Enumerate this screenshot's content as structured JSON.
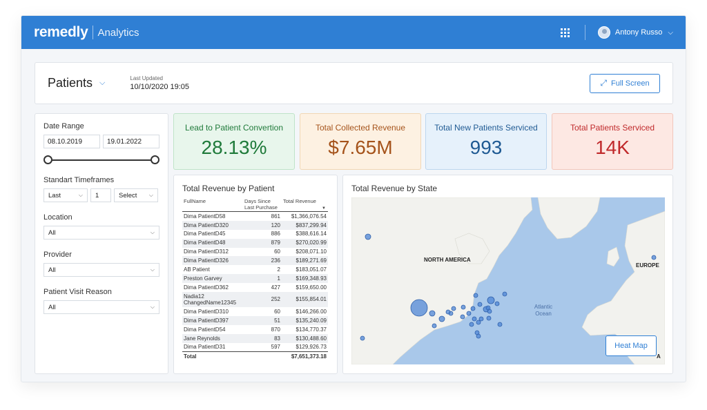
{
  "topbar": {
    "brand": "remedly",
    "product": "Analytics",
    "user_name": "Antony Russo",
    "icons": {
      "apps": "apps-grid-icon",
      "avatar": "user-avatar",
      "chevron": "chevron-down-icon"
    }
  },
  "header": {
    "title": "Patients",
    "last_updated_label": "Last Updated",
    "last_updated_value": "10/10/2020 19:05",
    "full_screen_label": "Full Screen"
  },
  "filters": {
    "date_range_label": "Date Range",
    "date_from": "08.10.2019",
    "date_to": "19.01.2022",
    "timeframes_label": "Standart Timeframes",
    "timeframe_unit": "Last",
    "timeframe_count": "1",
    "timeframe_period": "Select",
    "location_label": "Location",
    "location_value": "All",
    "provider_label": "Provider",
    "provider_value": "All",
    "visit_reason_label": "Patient Visit Reason",
    "visit_reason_value": "All"
  },
  "kpis": [
    {
      "label": "Lead to Patient Convertion",
      "value": "28.13%",
      "bg": "#e8f6ec",
      "border": "#bfe3c8",
      "color": "#1f7a3a"
    },
    {
      "label": "Total Collected Revenue",
      "value": "$7.65M",
      "bg": "#fdf1e2",
      "border": "#f1d7b4",
      "color": "#a5531b"
    },
    {
      "label": "Total New Patients Serviced",
      "value": "993",
      "bg": "#e6f1fb",
      "border": "#bcd6ef",
      "color": "#1f5a93"
    },
    {
      "label": "Total Patients Serviced",
      "value": "14K",
      "bg": "#fde8e3",
      "border": "#f2c6bb",
      "color": "#c0292b"
    }
  ],
  "revenue_table": {
    "title": "Total Revenue by Patient",
    "columns": [
      "FullName",
      "Days Since Last Purchase",
      "Total Revenue"
    ],
    "rows": [
      [
        "Dima PatientD58",
        "861",
        "$1,366,076.54"
      ],
      [
        "Dima PatientD320",
        "120",
        "$837,299.94"
      ],
      [
        "Dima PatientD45",
        "886",
        "$388,616.14"
      ],
      [
        "Dima PatientD48",
        "879",
        "$270,020.99"
      ],
      [
        "Dima PatientD312",
        "60",
        "$208,071.10"
      ],
      [
        "Dima PatientD326",
        "236",
        "$189,271.69"
      ],
      [
        "AB Patient",
        "2",
        "$183,051.07"
      ],
      [
        "Preston Garvey",
        "1",
        "$169,348.93"
      ],
      [
        "Dima PatientD362",
        "427",
        "$159,650.00"
      ],
      [
        "Nadia12 ChangedName12345",
        "252",
        "$155,854.01"
      ],
      [
        "Dima PatientD310",
        "60",
        "$146,266.00"
      ],
      [
        "Dima PatientD397",
        "51",
        "$135,240.09"
      ],
      [
        "Dima PatientD54",
        "870",
        "$134,770.37"
      ],
      [
        "Jane Reynolds",
        "83",
        "$130,488.60"
      ],
      [
        "Dima PatientD31",
        "597",
        "$129,926.73"
      ]
    ],
    "total_label": "Total",
    "total_value": "$7,651,373.18"
  },
  "map": {
    "title": "Total Revenue by State",
    "labels": {
      "na": "NORTH AMERICA",
      "eu": "EUROPE",
      "ocean": "Atlantic Ocean",
      "edge": "A"
    },
    "heat_map_label": "Heat Map",
    "land_color": "#f2f2ee",
    "water_color": "#a9c8ea",
    "bubble_color": "#4d86d6"
  }
}
